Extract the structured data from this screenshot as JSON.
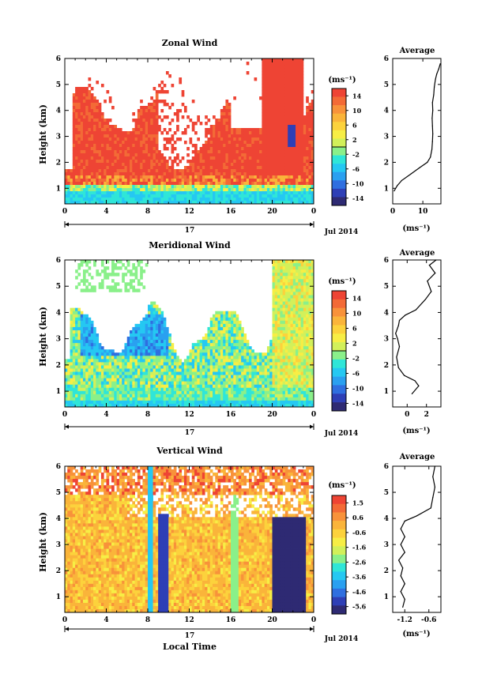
{
  "figure": {
    "xlabel": "Local Time",
    "date_label": "Jul 2014",
    "day_label": "17",
    "unit_label": "(ms⁻¹)",
    "ylabel": "Height (km)",
    "avg_title": "Average"
  },
  "palette": [
    "#2e2a73",
    "#2e3fb6",
    "#2f6fe0",
    "#2aa0f0",
    "#25c8f2",
    "#2fe6d8",
    "#8af08a",
    "#d2f05a",
    "#f7ee45",
    "#fcd23c",
    "#fab43a",
    "#f8923a",
    "#f36a36",
    "#ee4434"
  ],
  "chart_data": [
    {
      "type": "heatmap",
      "title": "Zonal Wind",
      "xticks": [
        "0",
        "4",
        "8",
        "12",
        "16",
        "20",
        "0"
      ],
      "yticks": [
        "1",
        "2",
        "3",
        "4",
        "5",
        "6"
      ],
      "xlim": [
        0,
        24
      ],
      "ylim": [
        0.4,
        6
      ],
      "colorbar": {
        "ticks": [
          "14",
          "10",
          "6",
          "2",
          "-2",
          "-6",
          "-10",
          "-14"
        ],
        "range": [
          -16,
          16
        ]
      },
      "average": {
        "xticks": [
          "0",
          "10"
        ],
        "xlim": [
          0,
          16
        ],
        "ylim": [
          0.4,
          6
        ],
        "x": [
          0.5,
          1.5,
          3,
          6,
          9,
          11.5,
          12.5,
          13,
          13.2,
          13.3,
          13.2,
          13.1,
          13.3,
          13.2,
          13.6,
          13.8,
          14.2,
          14.6,
          15.3,
          15.8
        ],
        "y": [
          0.9,
          1.1,
          1.3,
          1.55,
          1.8,
          2.0,
          2.2,
          2.5,
          2.8,
          3.1,
          3.4,
          3.7,
          4.0,
          4.3,
          4.6,
          4.9,
          5.2,
          5.4,
          5.6,
          5.8
        ]
      }
    },
    {
      "type": "heatmap",
      "title": "Meridional Wind",
      "xticks": [
        "0",
        "4",
        "8",
        "12",
        "16",
        "20",
        "0"
      ],
      "yticks": [
        "1",
        "2",
        "3",
        "4",
        "5",
        "6"
      ],
      "xlim": [
        0,
        24
      ],
      "ylim": [
        0.4,
        6
      ],
      "colorbar": {
        "ticks": [
          "14",
          "10",
          "6",
          "2",
          "-2",
          "-6",
          "-10",
          "-14"
        ],
        "range": [
          -16,
          16
        ]
      },
      "average": {
        "xticks": [
          "0",
          "2"
        ],
        "xlim": [
          -1.5,
          3.5
        ],
        "ylim": [
          0.4,
          6
        ],
        "x": [
          0.5,
          1.2,
          0.8,
          -0.3,
          -0.9,
          -1.1,
          -0.8,
          -1.0,
          -1.2,
          -0.9,
          -0.8,
          -0.2,
          0.9,
          1.9,
          2.5,
          2.1,
          2.9,
          2.3,
          3.0
        ],
        "y": [
          0.9,
          1.2,
          1.4,
          1.6,
          1.9,
          2.3,
          2.7,
          3.0,
          3.2,
          3.5,
          3.7,
          3.9,
          4.1,
          4.5,
          4.8,
          5.2,
          5.5,
          5.8,
          6.0
        ]
      }
    },
    {
      "type": "heatmap",
      "title": "Vertical Wind",
      "xticks": [
        "0",
        "4",
        "8",
        "12",
        "16",
        "20",
        "0"
      ],
      "yticks": [
        "1",
        "2",
        "3",
        "4",
        "5",
        "6"
      ],
      "xlim": [
        0,
        24
      ],
      "ylim": [
        0.4,
        6
      ],
      "colorbar": {
        "ticks": [
          "1.5",
          "0.6",
          "-0.6",
          "-1.6",
          "-2.6",
          "-3.6",
          "-4.6",
          "-5.6"
        ],
        "range": [
          -6,
          2
        ]
      },
      "average": {
        "xticks": [
          "-1.2",
          "-0.6"
        ],
        "xlim": [
          -1.5,
          -0.3
        ],
        "ylim": [
          0.4,
          6
        ],
        "x": [
          -1.25,
          -1.2,
          -1.3,
          -1.2,
          -1.3,
          -1.25,
          -1.35,
          -1.2,
          -1.3,
          -1.2,
          -1.3,
          -1.2,
          -0.9,
          -0.55,
          -0.5,
          -0.45,
          -0.5,
          -0.45
        ],
        "y": [
          0.6,
          0.9,
          1.2,
          1.5,
          1.8,
          2.1,
          2.4,
          2.7,
          3.0,
          3.3,
          3.6,
          3.9,
          4.1,
          4.4,
          4.8,
          5.2,
          5.6,
          6.0
        ]
      }
    }
  ]
}
